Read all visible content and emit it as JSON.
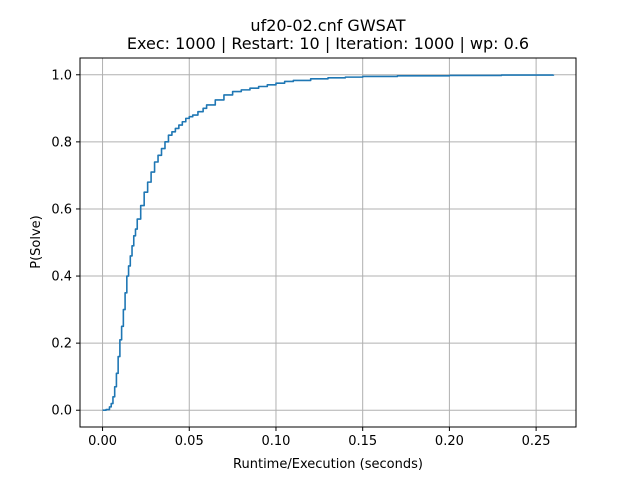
{
  "chart_data": {
    "type": "line",
    "title": "uf20-02.cnf GWSAT",
    "subtitle": "Exec: 1000 | Restart: 10 | Iteration: 1000 | wp: 0.6",
    "xlabel": "Runtime/Execution (seconds)",
    "ylabel": "P(Solve)",
    "xlim": [
      -0.013,
      0.273
    ],
    "ylim": [
      -0.05,
      1.05
    ],
    "xticks": [
      0.0,
      0.05,
      0.1,
      0.15,
      0.2,
      0.25
    ],
    "xtick_labels": [
      "0.00",
      "0.05",
      "0.10",
      "0.15",
      "0.20",
      "0.25"
    ],
    "yticks": [
      0.0,
      0.2,
      0.4,
      0.6,
      0.8,
      1.0
    ],
    "ytick_labels": [
      "0.0",
      "0.2",
      "0.4",
      "0.6",
      "0.8",
      "1.0"
    ],
    "grid": true,
    "series": [
      {
        "color": "#1f77b4",
        "x": [
          0.0,
          0.002,
          0.004,
          0.005,
          0.006,
          0.007,
          0.008,
          0.009,
          0.01,
          0.011,
          0.012,
          0.013,
          0.014,
          0.015,
          0.016,
          0.017,
          0.018,
          0.019,
          0.02,
          0.022,
          0.024,
          0.026,
          0.028,
          0.03,
          0.032,
          0.034,
          0.036,
          0.038,
          0.04,
          0.042,
          0.044,
          0.046,
          0.048,
          0.05,
          0.052,
          0.055,
          0.058,
          0.06,
          0.065,
          0.07,
          0.075,
          0.08,
          0.085,
          0.09,
          0.095,
          0.1,
          0.105,
          0.11,
          0.12,
          0.13,
          0.14,
          0.15,
          0.17,
          0.2,
          0.23,
          0.26
        ],
        "y": [
          0.0,
          0.002,
          0.01,
          0.02,
          0.04,
          0.07,
          0.11,
          0.16,
          0.21,
          0.25,
          0.3,
          0.35,
          0.4,
          0.43,
          0.46,
          0.49,
          0.52,
          0.54,
          0.57,
          0.61,
          0.65,
          0.68,
          0.71,
          0.74,
          0.76,
          0.78,
          0.8,
          0.82,
          0.83,
          0.84,
          0.85,
          0.86,
          0.87,
          0.875,
          0.88,
          0.89,
          0.9,
          0.91,
          0.925,
          0.94,
          0.95,
          0.955,
          0.96,
          0.965,
          0.97,
          0.975,
          0.98,
          0.983,
          0.988,
          0.991,
          0.993,
          0.995,
          0.997,
          0.998,
          0.999,
          1.0
        ]
      }
    ]
  }
}
